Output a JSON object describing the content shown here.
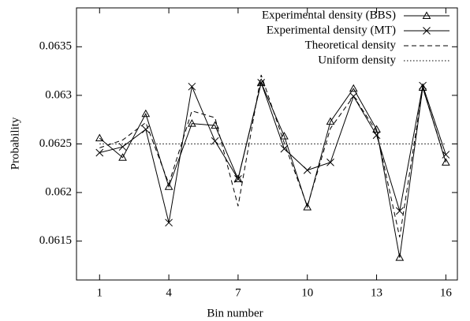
{
  "chart_data": {
    "type": "line",
    "xlabel": "Bin number",
    "ylabel": "Probability",
    "x": [
      1,
      2,
      3,
      4,
      5,
      6,
      7,
      8,
      9,
      10,
      11,
      12,
      13,
      14,
      15,
      16
    ],
    "xlim": [
      0,
      16.5
    ],
    "xticks": [
      1,
      4,
      7,
      10,
      13,
      16
    ],
    "ylim": [
      0.0611,
      0.0639
    ],
    "yticks": [
      0.0615,
      0.062,
      0.0625,
      0.063,
      0.0635
    ],
    "legend": "upper right",
    "series": [
      {
        "name": "Experimental density (BBS)",
        "color": "#000000",
        "dash": "solid",
        "marker": "triangle",
        "values": [
          0.06256,
          0.06236,
          0.06281,
          0.06206,
          0.06271,
          0.06269,
          0.06214,
          0.06313,
          0.06258,
          0.06185,
          0.06273,
          0.06307,
          0.06265,
          0.06133,
          0.06308,
          0.06231
        ]
      },
      {
        "name": "Experimental density  (MT)",
        "color": "#000000",
        "dash": "solid",
        "marker": "cross",
        "values": [
          0.06241,
          0.06247,
          0.06265,
          0.06169,
          0.06309,
          0.06253,
          0.06214,
          0.06313,
          0.06245,
          0.06223,
          0.06231,
          0.06299,
          0.06259,
          0.06181,
          0.0631,
          0.06239
        ]
      },
      {
        "name": "Theoretical density",
        "color": "#000000",
        "dash": "dashed",
        "marker": "none",
        "values": [
          0.06246,
          0.06254,
          0.06272,
          0.06209,
          0.06284,
          0.06277,
          0.06186,
          0.06321,
          0.06251,
          0.06186,
          0.06266,
          0.06299,
          0.06263,
          0.06154,
          0.06308,
          0.06232
        ]
      },
      {
        "name": "Uniform density",
        "color": "#000000",
        "dash": "dotted",
        "marker": "none",
        "values": [
          0.0625,
          0.0625,
          0.0625,
          0.0625,
          0.0625,
          0.0625,
          0.0625,
          0.0625,
          0.0625,
          0.0625,
          0.0625,
          0.0625,
          0.0625,
          0.0625,
          0.0625,
          0.0625
        ]
      }
    ]
  }
}
